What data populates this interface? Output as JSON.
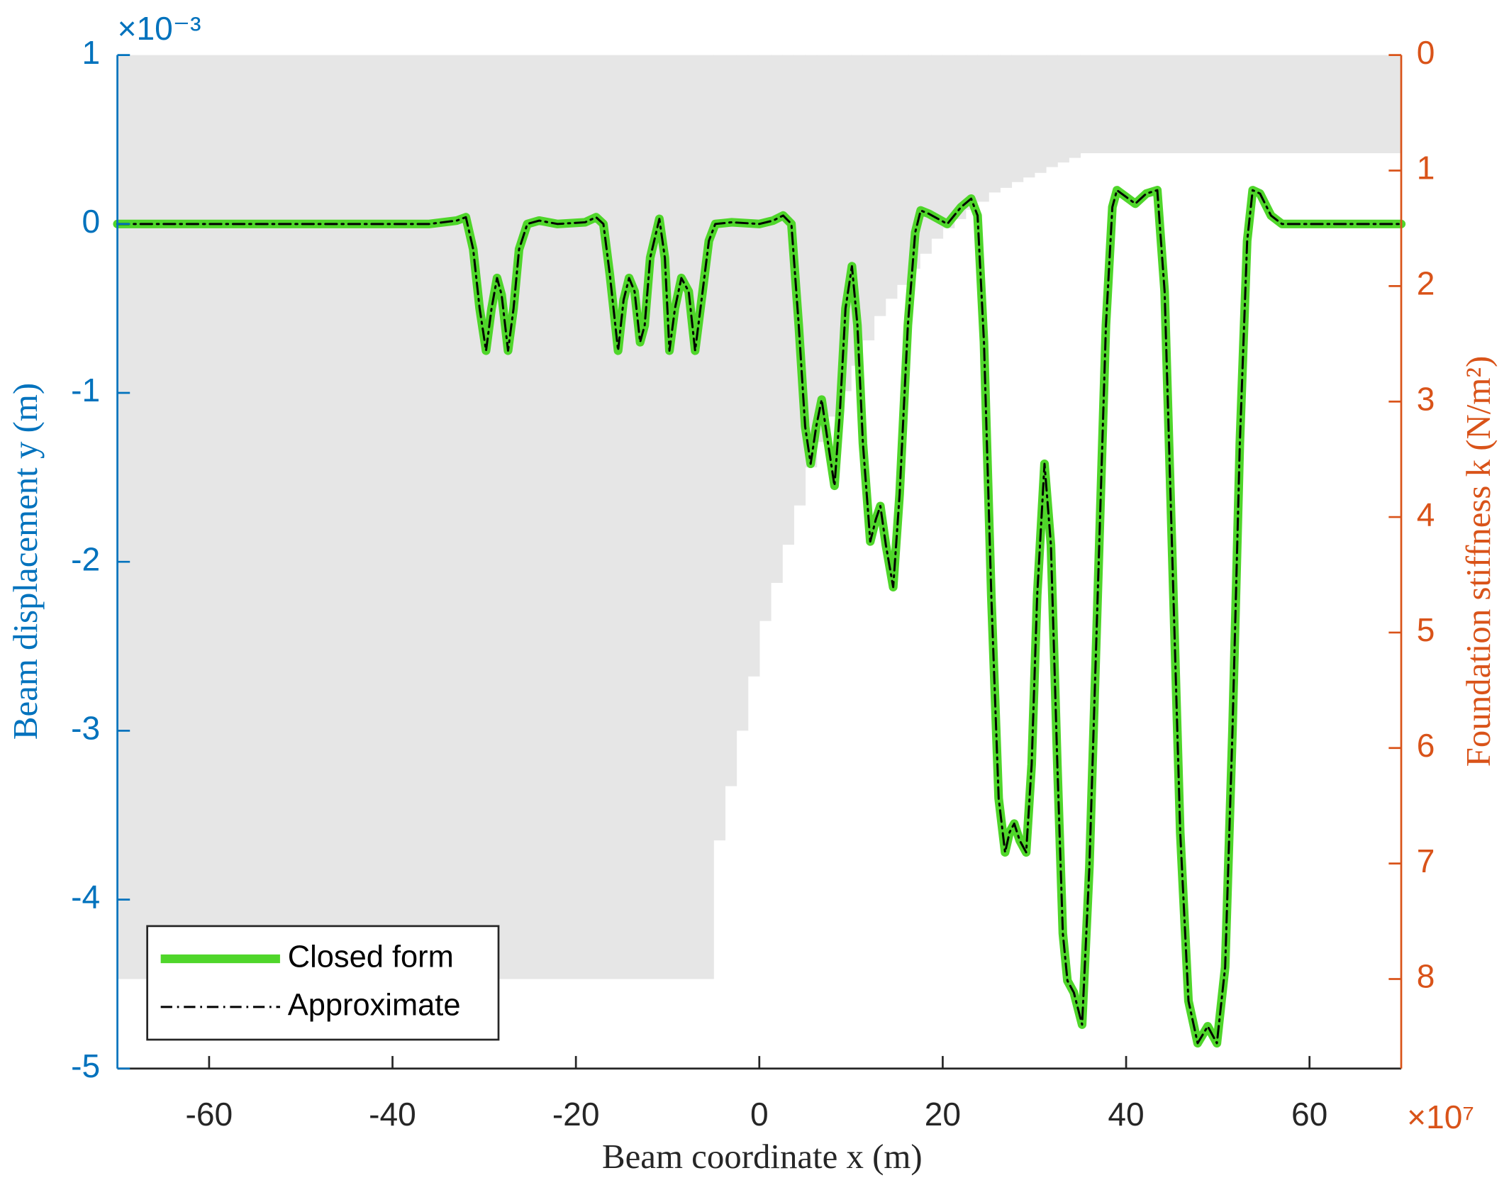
{
  "chart_data": {
    "type": "line",
    "xlabel": "Beam coordinate x (m)",
    "ylabel": "Beam displacement y (m)",
    "y2label": "Foundation stiffness k (N/m²)",
    "y_multiplier": "×10⁻³",
    "y2_multiplier": "×10⁷",
    "xlim": [
      -70,
      70
    ],
    "xticks": [
      -60,
      -40,
      -20,
      0,
      20,
      40,
      60
    ],
    "ylim": [
      -5,
      1
    ],
    "yticks": [
      -5,
      -4,
      -3,
      -2,
      -1,
      0,
      1
    ],
    "y2lim": [
      0,
      8.775
    ],
    "y2ticks": [
      0,
      1,
      2,
      3,
      4,
      5,
      6,
      7,
      8
    ],
    "y2_reversed": true,
    "y_color": "#0072bd",
    "y2_color": "#d95319",
    "legend": "lower left",
    "stiffness": {
      "color": "#e6e6e6",
      "axis": "y2",
      "x": [
        -70,
        -5,
        -3.75,
        -2.5,
        -1.25,
        0,
        1.25,
        2.5,
        3.75,
        5,
        6.25,
        7.5,
        8.75,
        10,
        11.25,
        12.5,
        13.75,
        15,
        16.25,
        17.5,
        18.75,
        20,
        21.25,
        22.5,
        23.75,
        25,
        26.25,
        27.5,
        28.75,
        30,
        31.25,
        32.5,
        33.75,
        35
      ],
      "values": [
        8,
        6.8,
        6.33,
        5.85,
        5.38,
        4.9,
        4.57,
        4.24,
        3.9,
        3.57,
        3.35,
        3.13,
        2.91,
        2.69,
        2.47,
        2.26,
        2.11,
        1.99,
        1.85,
        1.72,
        1.59,
        1.5,
        1.42,
        1.34,
        1.27,
        1.19,
        1.15,
        1.1,
        1.06,
        1.02,
        0.97,
        0.93,
        0.89,
        0.85
      ]
    },
    "series": [
      {
        "name": "Closed form",
        "color": "#4fd62a",
        "style": "solid",
        "x": [
          -70,
          -36,
          -33,
          -32,
          -31.2,
          -30.5,
          -29.8,
          -29.2,
          -28.6,
          -28.1,
          -27.4,
          -26.8,
          -26.2,
          -25.3,
          -24,
          -22,
          -19,
          -17.8,
          -17,
          -16.3,
          -15.4,
          -14.8,
          -14.2,
          -13.6,
          -13,
          -12.5,
          -11.9,
          -10.9,
          -10.3,
          -9.8,
          -9.2,
          -8.5,
          -7.7,
          -7,
          -6.3,
          -5.5,
          -4.8,
          -3,
          0,
          1.5,
          2.6,
          3.5,
          4.3,
          5,
          5.6,
          6.2,
          6.8,
          7.5,
          8.2,
          8.8,
          9.4,
          10.1,
          10.7,
          11.3,
          12.1,
          12.7,
          13.2,
          13.8,
          14.6,
          15.3,
          16.2,
          17,
          17.6,
          18.5,
          20.5,
          22,
          23.1,
          23.8,
          24.5,
          25.3,
          26.1,
          26.8,
          27.3,
          27.8,
          28.4,
          29.1,
          29.7,
          30.3,
          31.1,
          31.8,
          32.5,
          33.1,
          33.6,
          34.3,
          35.2,
          36,
          36.9,
          37.8,
          38.5,
          39,
          40,
          41,
          42.2,
          43.4,
          44.2,
          45,
          45.9,
          46.8,
          47.8,
          48.9,
          49.9,
          50.8,
          51.6,
          52.4,
          53.2,
          53.8,
          54.6,
          55.8,
          57,
          58.2,
          70
        ],
        "values": [
          0,
          0,
          0.02,
          0.04,
          -0.15,
          -0.5,
          -0.75,
          -0.5,
          -0.32,
          -0.42,
          -0.75,
          -0.5,
          -0.15,
          0,
          0.02,
          0,
          0.01,
          0.04,
          0,
          -0.3,
          -0.75,
          -0.45,
          -0.32,
          -0.4,
          -0.7,
          -0.6,
          -0.2,
          0.03,
          -0.2,
          -0.75,
          -0.5,
          -0.32,
          -0.4,
          -0.75,
          -0.45,
          -0.1,
          0,
          0.01,
          0,
          0.02,
          0.05,
          0,
          -0.6,
          -1.2,
          -1.42,
          -1.2,
          -1.04,
          -1.3,
          -1.55,
          -1.1,
          -0.5,
          -0.25,
          -0.6,
          -1.3,
          -1.88,
          -1.75,
          -1.67,
          -1.9,
          -2.15,
          -1.6,
          -0.6,
          -0.05,
          0.08,
          0.06,
          0,
          0.1,
          0.15,
          0.05,
          -0.7,
          -2.2,
          -3.4,
          -3.72,
          -3.6,
          -3.55,
          -3.65,
          -3.72,
          -3.2,
          -2.2,
          -1.42,
          -1.9,
          -3.2,
          -4.2,
          -4.48,
          -4.55,
          -4.74,
          -3.8,
          -2.2,
          -0.6,
          0.1,
          0.2,
          0.16,
          0.12,
          0.18,
          0.2,
          -0.4,
          -1.9,
          -3.6,
          -4.6,
          -4.85,
          -4.75,
          -4.85,
          -4.4,
          -3,
          -1.3,
          -0.1,
          0.2,
          0.18,
          0.05,
          0,
          0,
          0
        ]
      },
      {
        "name": "Approximate",
        "color": "#000000",
        "style": "dashdot",
        "x": [
          -70,
          -36,
          -33,
          -32,
          -31.2,
          -30.5,
          -29.8,
          -29.2,
          -28.6,
          -28.1,
          -27.4,
          -26.8,
          -26.2,
          -25.3,
          -24,
          -22,
          -19,
          -17.8,
          -17,
          -16.3,
          -15.4,
          -14.8,
          -14.2,
          -13.6,
          -13,
          -12.5,
          -11.9,
          -10.9,
          -10.3,
          -9.8,
          -9.2,
          -8.5,
          -7.7,
          -7,
          -6.3,
          -5.5,
          -4.8,
          -3,
          0,
          1.5,
          2.6,
          3.5,
          4.3,
          5,
          5.6,
          6.2,
          6.8,
          7.5,
          8.2,
          8.8,
          9.4,
          10.1,
          10.7,
          11.3,
          12.1,
          12.7,
          13.2,
          13.8,
          14.6,
          15.3,
          16.2,
          17,
          17.6,
          18.5,
          20.5,
          22,
          23.1,
          23.8,
          24.5,
          25.3,
          26.1,
          26.8,
          27.3,
          27.8,
          28.4,
          29.1,
          29.7,
          30.3,
          31.1,
          31.8,
          32.5,
          33.1,
          33.6,
          34.3,
          35.2,
          36,
          36.9,
          37.8,
          38.5,
          39,
          40,
          41,
          42.2,
          43.4,
          44.2,
          45,
          45.9,
          46.8,
          47.8,
          48.9,
          49.9,
          50.8,
          51.6,
          52.4,
          53.2,
          53.8,
          54.6,
          55.8,
          57,
          58.2,
          70
        ],
        "values": [
          0,
          0,
          0.02,
          0.04,
          -0.15,
          -0.5,
          -0.75,
          -0.5,
          -0.32,
          -0.42,
          -0.75,
          -0.5,
          -0.15,
          0,
          0.02,
          0,
          0.01,
          0.04,
          0,
          -0.3,
          -0.75,
          -0.45,
          -0.32,
          -0.4,
          -0.7,
          -0.6,
          -0.2,
          0.03,
          -0.2,
          -0.75,
          -0.5,
          -0.32,
          -0.4,
          -0.75,
          -0.45,
          -0.1,
          0,
          0.01,
          0,
          0.02,
          0.05,
          0,
          -0.6,
          -1.2,
          -1.42,
          -1.2,
          -1.04,
          -1.3,
          -1.55,
          -1.1,
          -0.5,
          -0.25,
          -0.6,
          -1.3,
          -1.88,
          -1.75,
          -1.67,
          -1.9,
          -2.15,
          -1.6,
          -0.6,
          -0.05,
          0.08,
          0.06,
          0,
          0.1,
          0.15,
          0.05,
          -0.7,
          -2.2,
          -3.4,
          -3.72,
          -3.6,
          -3.55,
          -3.65,
          -3.72,
          -3.2,
          -2.2,
          -1.42,
          -1.9,
          -3.2,
          -4.2,
          -4.48,
          -4.55,
          -4.74,
          -3.8,
          -2.2,
          -0.6,
          0.1,
          0.2,
          0.16,
          0.12,
          0.18,
          0.2,
          -0.4,
          -1.9,
          -3.6,
          -4.6,
          -4.85,
          -4.75,
          -4.85,
          -4.4,
          -3,
          -1.3,
          -0.1,
          0.2,
          0.18,
          0.05,
          0,
          0,
          0
        ]
      }
    ]
  }
}
